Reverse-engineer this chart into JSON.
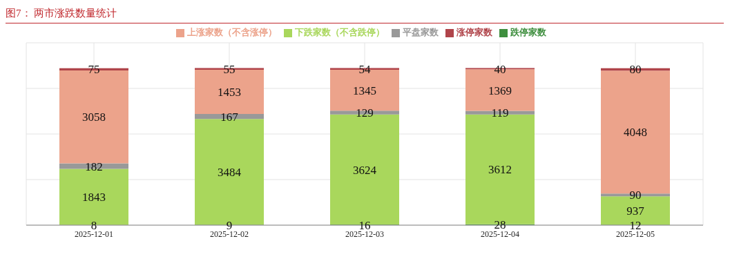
{
  "chart_data": {
    "type": "bar",
    "title": "图7：  两市涨跌数量统计",
    "stacked": true,
    "data_labels": true,
    "grid": true,
    "legend": "top",
    "categories": [
      "2025-12-01",
      "2025-12-02",
      "2025-12-03",
      "2025-12-04",
      "2025-12-05"
    ],
    "series": [
      {
        "name": "跌停家数",
        "color": "#3f8f3f",
        "values": [
          8,
          9,
          16,
          28,
          12
        ]
      },
      {
        "name": "下跌家数（不含跌停）",
        "color": "#a9d75c",
        "values": [
          1843,
          3484,
          3624,
          3612,
          937
        ]
      },
      {
        "name": "平盘家数",
        "color": "#999999",
        "values": [
          182,
          167,
          129,
          119,
          90
        ]
      },
      {
        "name": "上涨家数（不含涨停）",
        "color": "#eca38b",
        "values": [
          3058,
          1453,
          1345,
          1369,
          4048
        ]
      },
      {
        "name": "涨停家数",
        "color": "#b0444a",
        "values": [
          75,
          55,
          54,
          40,
          80
        ]
      }
    ]
  }
}
